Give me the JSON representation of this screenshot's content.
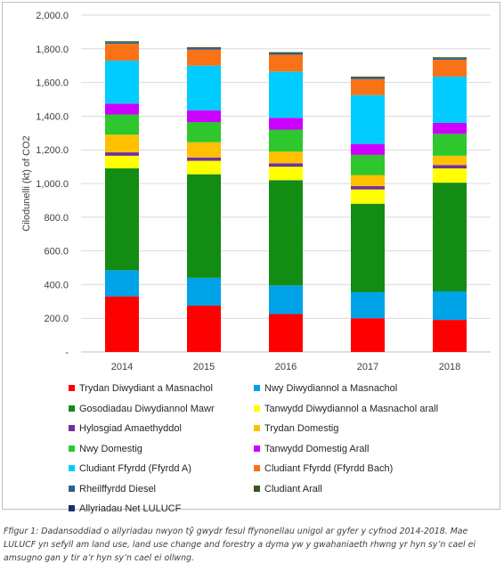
{
  "chart_data": {
    "type": "stacked-bar",
    "categories": [
      "2014",
      "2015",
      "2016",
      "2017",
      "2018"
    ],
    "ylabel": "Cilodunelli (kt) of CO2",
    "ylim": [
      0,
      2000
    ],
    "yticks": [
      "-",
      "200.0",
      "400.0",
      "600.0",
      "800.0",
      "1,000.0",
      "1,200.0",
      "1,400.0",
      "1,600.0",
      "1,800.0",
      "2,000.0"
    ],
    "grid": true,
    "legend_position": "bottom",
    "series": [
      {
        "name": "Trydan Diwydiant a Masnachol",
        "color": "#ff0000",
        "values": [
          330,
          275,
          225,
          200,
          190
        ]
      },
      {
        "name": "Nwy Diwydiannol a Masnachol",
        "color": "#00a2e8",
        "values": [
          155,
          165,
          170,
          155,
          170
        ]
      },
      {
        "name": "Gosodiadau Diwydiannol Mawr",
        "color": "#138c13",
        "values": [
          605,
          615,
          625,
          525,
          645
        ]
      },
      {
        "name": "Tanwydd Diwydiannol a Masnachol arall",
        "color": "#ffff00",
        "values": [
          75,
          80,
          80,
          85,
          85
        ]
      },
      {
        "name": "Hylosgiad Amaethyddol",
        "color": "#7030a0",
        "values": [
          20,
          20,
          20,
          20,
          20
        ]
      },
      {
        "name": "Trydan Domestig",
        "color": "#ffc000",
        "values": [
          105,
          90,
          70,
          65,
          55
        ]
      },
      {
        "name": "Nwy Domestig",
        "color": "#2ec72e",
        "values": [
          120,
          120,
          130,
          120,
          130
        ]
      },
      {
        "name": "Tanwydd Domestig Arall",
        "color": "#cc00ff",
        "values": [
          65,
          70,
          70,
          65,
          65
        ]
      },
      {
        "name": "Cludiant Ffyrdd (Ffyrdd A)",
        "color": "#00ccff",
        "values": [
          255,
          265,
          275,
          290,
          275
        ]
      },
      {
        "name": "Cludiant Ffyrdd (Ffyrdd Bach)",
        "color": "#f97316",
        "values": [
          100,
          95,
          100,
          95,
          100
        ]
      },
      {
        "name": "Rheilffyrdd Diesel",
        "color": "#2f5f8a",
        "values": [
          10,
          10,
          10,
          10,
          10
        ]
      },
      {
        "name": "Cludiant Arall",
        "color": "#375623",
        "values": [
          5,
          5,
          5,
          5,
          5
        ]
      },
      {
        "name": "Allyriadau Net LULUCF",
        "color": "#1f2d6b",
        "values": [
          0,
          0,
          0,
          0,
          0
        ]
      }
    ]
  },
  "caption": "Ffigur 1: Dadansoddiad o allyriadau nwyon tŷ gwydr fesul ffynonellau unigol ar gyfer y cyfnod 2014-2018. Mae LULUCF yn sefyll am land use, land use change and forestry a dyma yw y gwahaniaeth rhwng yr hyn sy’n cael ei amsugno gan y tir a’r hyn sy’n cael ei ollwng."
}
